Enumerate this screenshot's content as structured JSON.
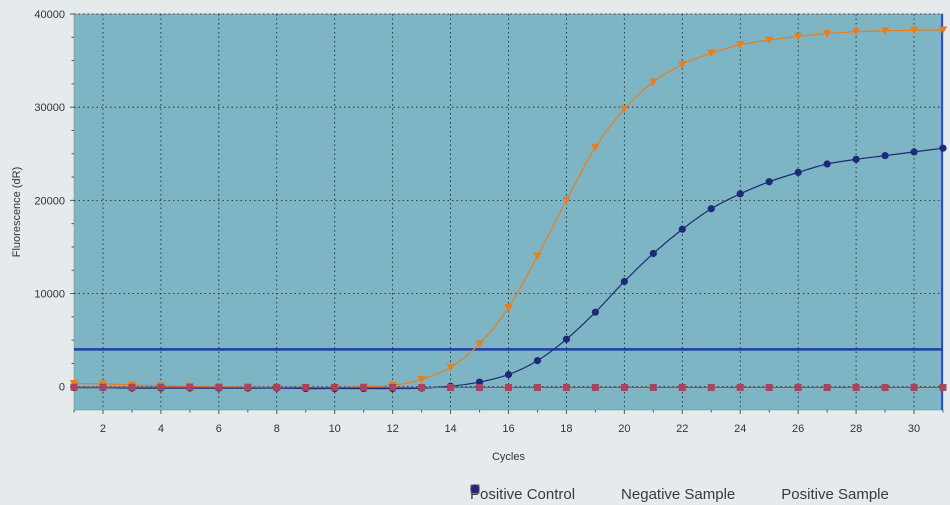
{
  "chart_data": {
    "type": "line",
    "title": "",
    "xlabel": "Cycles",
    "ylabel": "Fluorescence (dR)",
    "xlim": [
      1,
      31
    ],
    "ylim": [
      -2500,
      40000
    ],
    "x_ticks": [
      2,
      4,
      6,
      8,
      10,
      12,
      14,
      16,
      18,
      20,
      22,
      24,
      26,
      28,
      30
    ],
    "y_ticks": [
      0,
      10000,
      20000,
      30000,
      40000
    ],
    "grid": true,
    "plot_background": "#7eb5c4",
    "threshold": {
      "value": 4000,
      "color": "#1f3fa0"
    },
    "legend_position": "bottom-right",
    "x": [
      1,
      2,
      3,
      4,
      5,
      6,
      7,
      8,
      9,
      10,
      11,
      12,
      13,
      14,
      15,
      16,
      17,
      18,
      19,
      20,
      21,
      22,
      23,
      24,
      25,
      26,
      27,
      28,
      29,
      30,
      31
    ],
    "series": [
      {
        "name": "Positive Control",
        "color": "#e87e1e",
        "marker": "triangle",
        "values": [
          350,
          300,
          200,
          100,
          50,
          0,
          -50,
          -100,
          -100,
          -100,
          0,
          150,
          800,
          2100,
          4600,
          8500,
          14000,
          20000,
          25700,
          29800,
          32700,
          34600,
          35800,
          36700,
          37200,
          37600,
          37900,
          38100,
          38200,
          38250,
          38300
        ]
      },
      {
        "name": "Negative Sample",
        "color": "#a8445e",
        "marker": "square",
        "values": [
          -50,
          -50,
          -60,
          -60,
          -60,
          -70,
          -70,
          -70,
          -80,
          -80,
          -80,
          -80,
          -80,
          -80,
          -80,
          -80,
          -80,
          -80,
          -80,
          -80,
          -80,
          -80,
          -80,
          -80,
          -80,
          -80,
          -80,
          -80,
          -80,
          -80,
          -80
        ]
      },
      {
        "name": "Positive Sample",
        "color": "#1c2a78",
        "marker": "circle",
        "values": [
          -100,
          -100,
          -150,
          -150,
          -150,
          -150,
          -150,
          -150,
          -200,
          -200,
          -200,
          -200,
          -150,
          50,
          500,
          1300,
          2800,
          5100,
          8000,
          11300,
          14300,
          16900,
          19100,
          20700,
          22000,
          23000,
          23900,
          24400,
          24800,
          25200,
          25600
        ]
      }
    ]
  }
}
